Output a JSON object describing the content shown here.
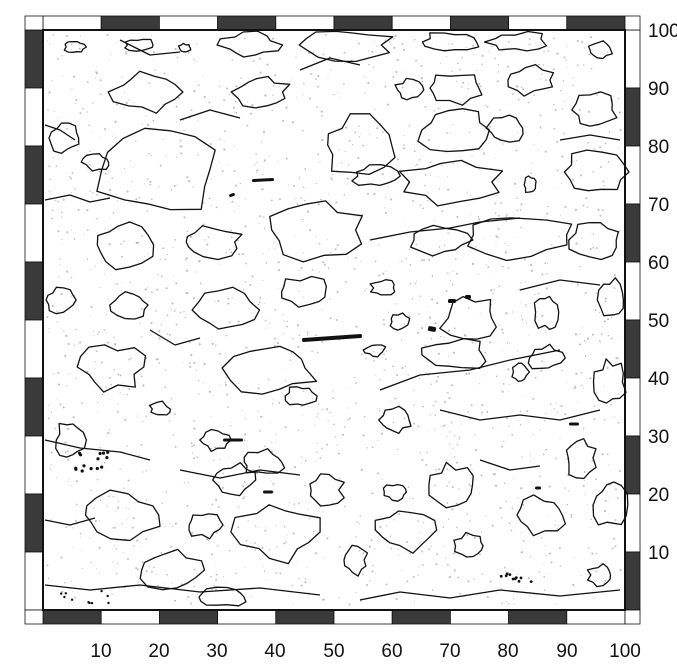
{
  "map": {
    "x_axis": {
      "range": [
        0,
        100
      ],
      "ticks": [
        "10",
        "20",
        "30",
        "40",
        "50",
        "60",
        "70",
        "80",
        "90",
        "100"
      ]
    },
    "y_axis": {
      "range": [
        0,
        100
      ],
      "ticks": [
        "10",
        "20",
        "30",
        "40",
        "50",
        "60",
        "70",
        "80",
        "90",
        "100"
      ]
    },
    "frame": {
      "checker_interval": 10,
      "colors": {
        "dark": "#3a3a3a",
        "light": "#ffffff"
      }
    },
    "colors": {
      "outline": "#111111",
      "stipple": "#bdbdbd",
      "background": "#ffffff"
    },
    "features": [
      "stone-outlines",
      "stippled-texture",
      "black-mark-fragments"
    ]
  }
}
